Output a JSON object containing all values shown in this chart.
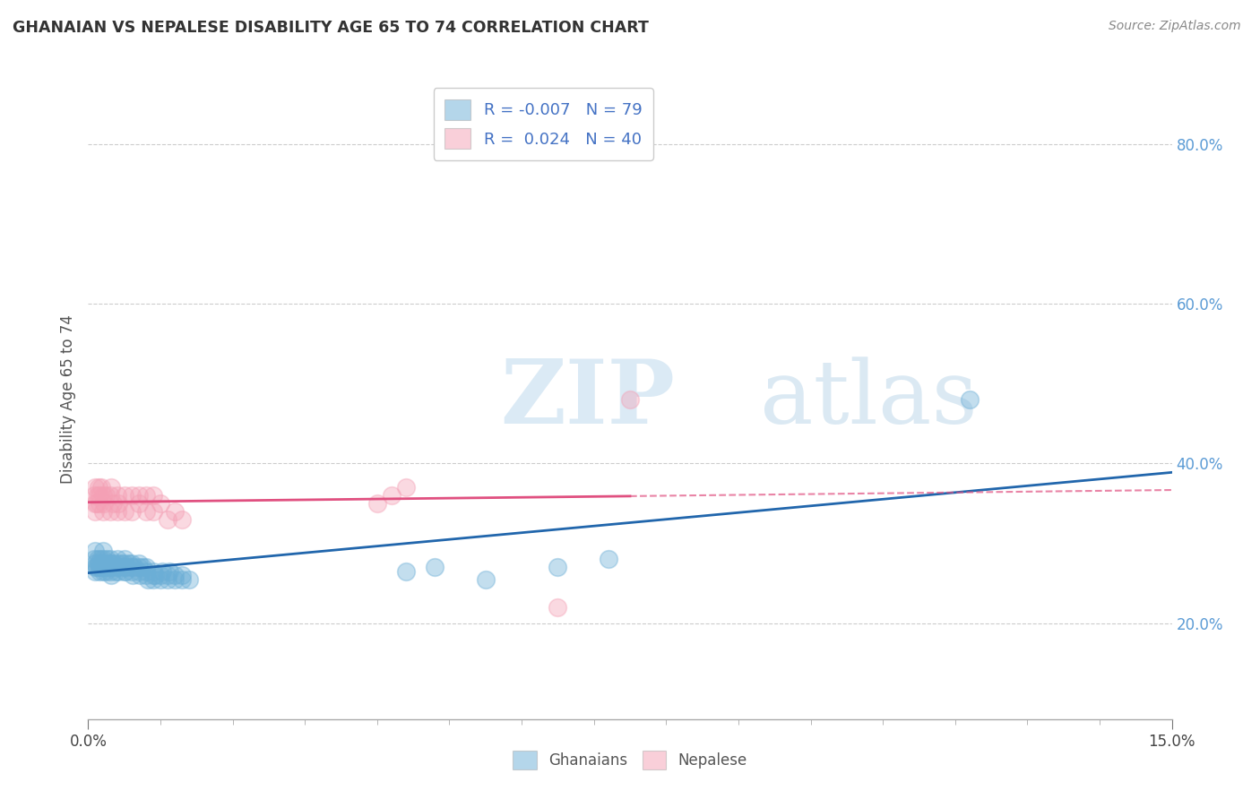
{
  "title": "GHANAIAN VS NEPALESE DISABILITY AGE 65 TO 74 CORRELATION CHART",
  "source_text": "Source: ZipAtlas.com",
  "ylabel": "Disability Age 65 to 74",
  "x_min": 0.0,
  "x_max": 0.15,
  "y_min": 0.08,
  "y_max": 0.88,
  "ghanaian_color": "#6baed6",
  "nepalese_color": "#f4a0b5",
  "ghanaian_line_color": "#2166ac",
  "nepalese_line_color": "#e05080",
  "watermark_zip": "ZIP",
  "watermark_atlas": "atlas",
  "ghanaian_x": [
    0.0008,
    0.0009,
    0.001,
    0.001,
    0.001,
    0.0012,
    0.0013,
    0.0014,
    0.0015,
    0.0016,
    0.0017,
    0.0018,
    0.0019,
    0.002,
    0.002,
    0.002,
    0.002,
    0.002,
    0.0022,
    0.0023,
    0.0024,
    0.0025,
    0.003,
    0.003,
    0.003,
    0.003,
    0.003,
    0.0032,
    0.0034,
    0.0036,
    0.0038,
    0.004,
    0.004,
    0.004,
    0.0042,
    0.0044,
    0.0046,
    0.005,
    0.005,
    0.005,
    0.005,
    0.0052,
    0.0054,
    0.0056,
    0.006,
    0.006,
    0.006,
    0.0062,
    0.0064,
    0.007,
    0.007,
    0.007,
    0.0072,
    0.0075,
    0.008,
    0.008,
    0.008,
    0.0082,
    0.009,
    0.009,
    0.009,
    0.0092,
    0.01,
    0.01,
    0.0102,
    0.011,
    0.011,
    0.0112,
    0.012,
    0.012,
    0.013,
    0.013,
    0.014,
    0.044,
    0.048,
    0.055,
    0.065,
    0.072,
    0.122
  ],
  "ghanaian_y": [
    0.28,
    0.27,
    0.29,
    0.275,
    0.265,
    0.27,
    0.28,
    0.275,
    0.27,
    0.265,
    0.28,
    0.275,
    0.27,
    0.29,
    0.275,
    0.265,
    0.27,
    0.28,
    0.275,
    0.27,
    0.265,
    0.28,
    0.275,
    0.265,
    0.27,
    0.28,
    0.275,
    0.26,
    0.27,
    0.275,
    0.265,
    0.27,
    0.28,
    0.275,
    0.265,
    0.27,
    0.275,
    0.27,
    0.265,
    0.275,
    0.28,
    0.265,
    0.27,
    0.275,
    0.265,
    0.27,
    0.275,
    0.26,
    0.27,
    0.265,
    0.27,
    0.275,
    0.26,
    0.27,
    0.265,
    0.26,
    0.27,
    0.255,
    0.26,
    0.265,
    0.255,
    0.26,
    0.255,
    0.26,
    0.265,
    0.255,
    0.26,
    0.265,
    0.255,
    0.26,
    0.255,
    0.26,
    0.255,
    0.265,
    0.27,
    0.255,
    0.27,
    0.28,
    0.48
  ],
  "nepalese_x": [
    0.0008,
    0.0009,
    0.001,
    0.001,
    0.0012,
    0.0013,
    0.0014,
    0.0015,
    0.0016,
    0.0018,
    0.002,
    0.002,
    0.0022,
    0.0024,
    0.003,
    0.003,
    0.0032,
    0.0034,
    0.004,
    0.004,
    0.0042,
    0.005,
    0.005,
    0.006,
    0.006,
    0.007,
    0.007,
    0.008,
    0.008,
    0.009,
    0.009,
    0.01,
    0.011,
    0.012,
    0.013,
    0.04,
    0.042,
    0.044,
    0.065,
    0.075
  ],
  "nepalese_y": [
    0.36,
    0.34,
    0.37,
    0.35,
    0.35,
    0.36,
    0.37,
    0.35,
    0.36,
    0.37,
    0.34,
    0.36,
    0.35,
    0.36,
    0.34,
    0.36,
    0.37,
    0.35,
    0.34,
    0.36,
    0.35,
    0.34,
    0.36,
    0.34,
    0.36,
    0.35,
    0.36,
    0.34,
    0.36,
    0.34,
    0.36,
    0.35,
    0.33,
    0.34,
    0.33,
    0.35,
    0.36,
    0.37,
    0.22,
    0.48
  ],
  "gh_R": "-0.007",
  "gh_N": "79",
  "nep_R": "0.024",
  "nep_N": "40"
}
